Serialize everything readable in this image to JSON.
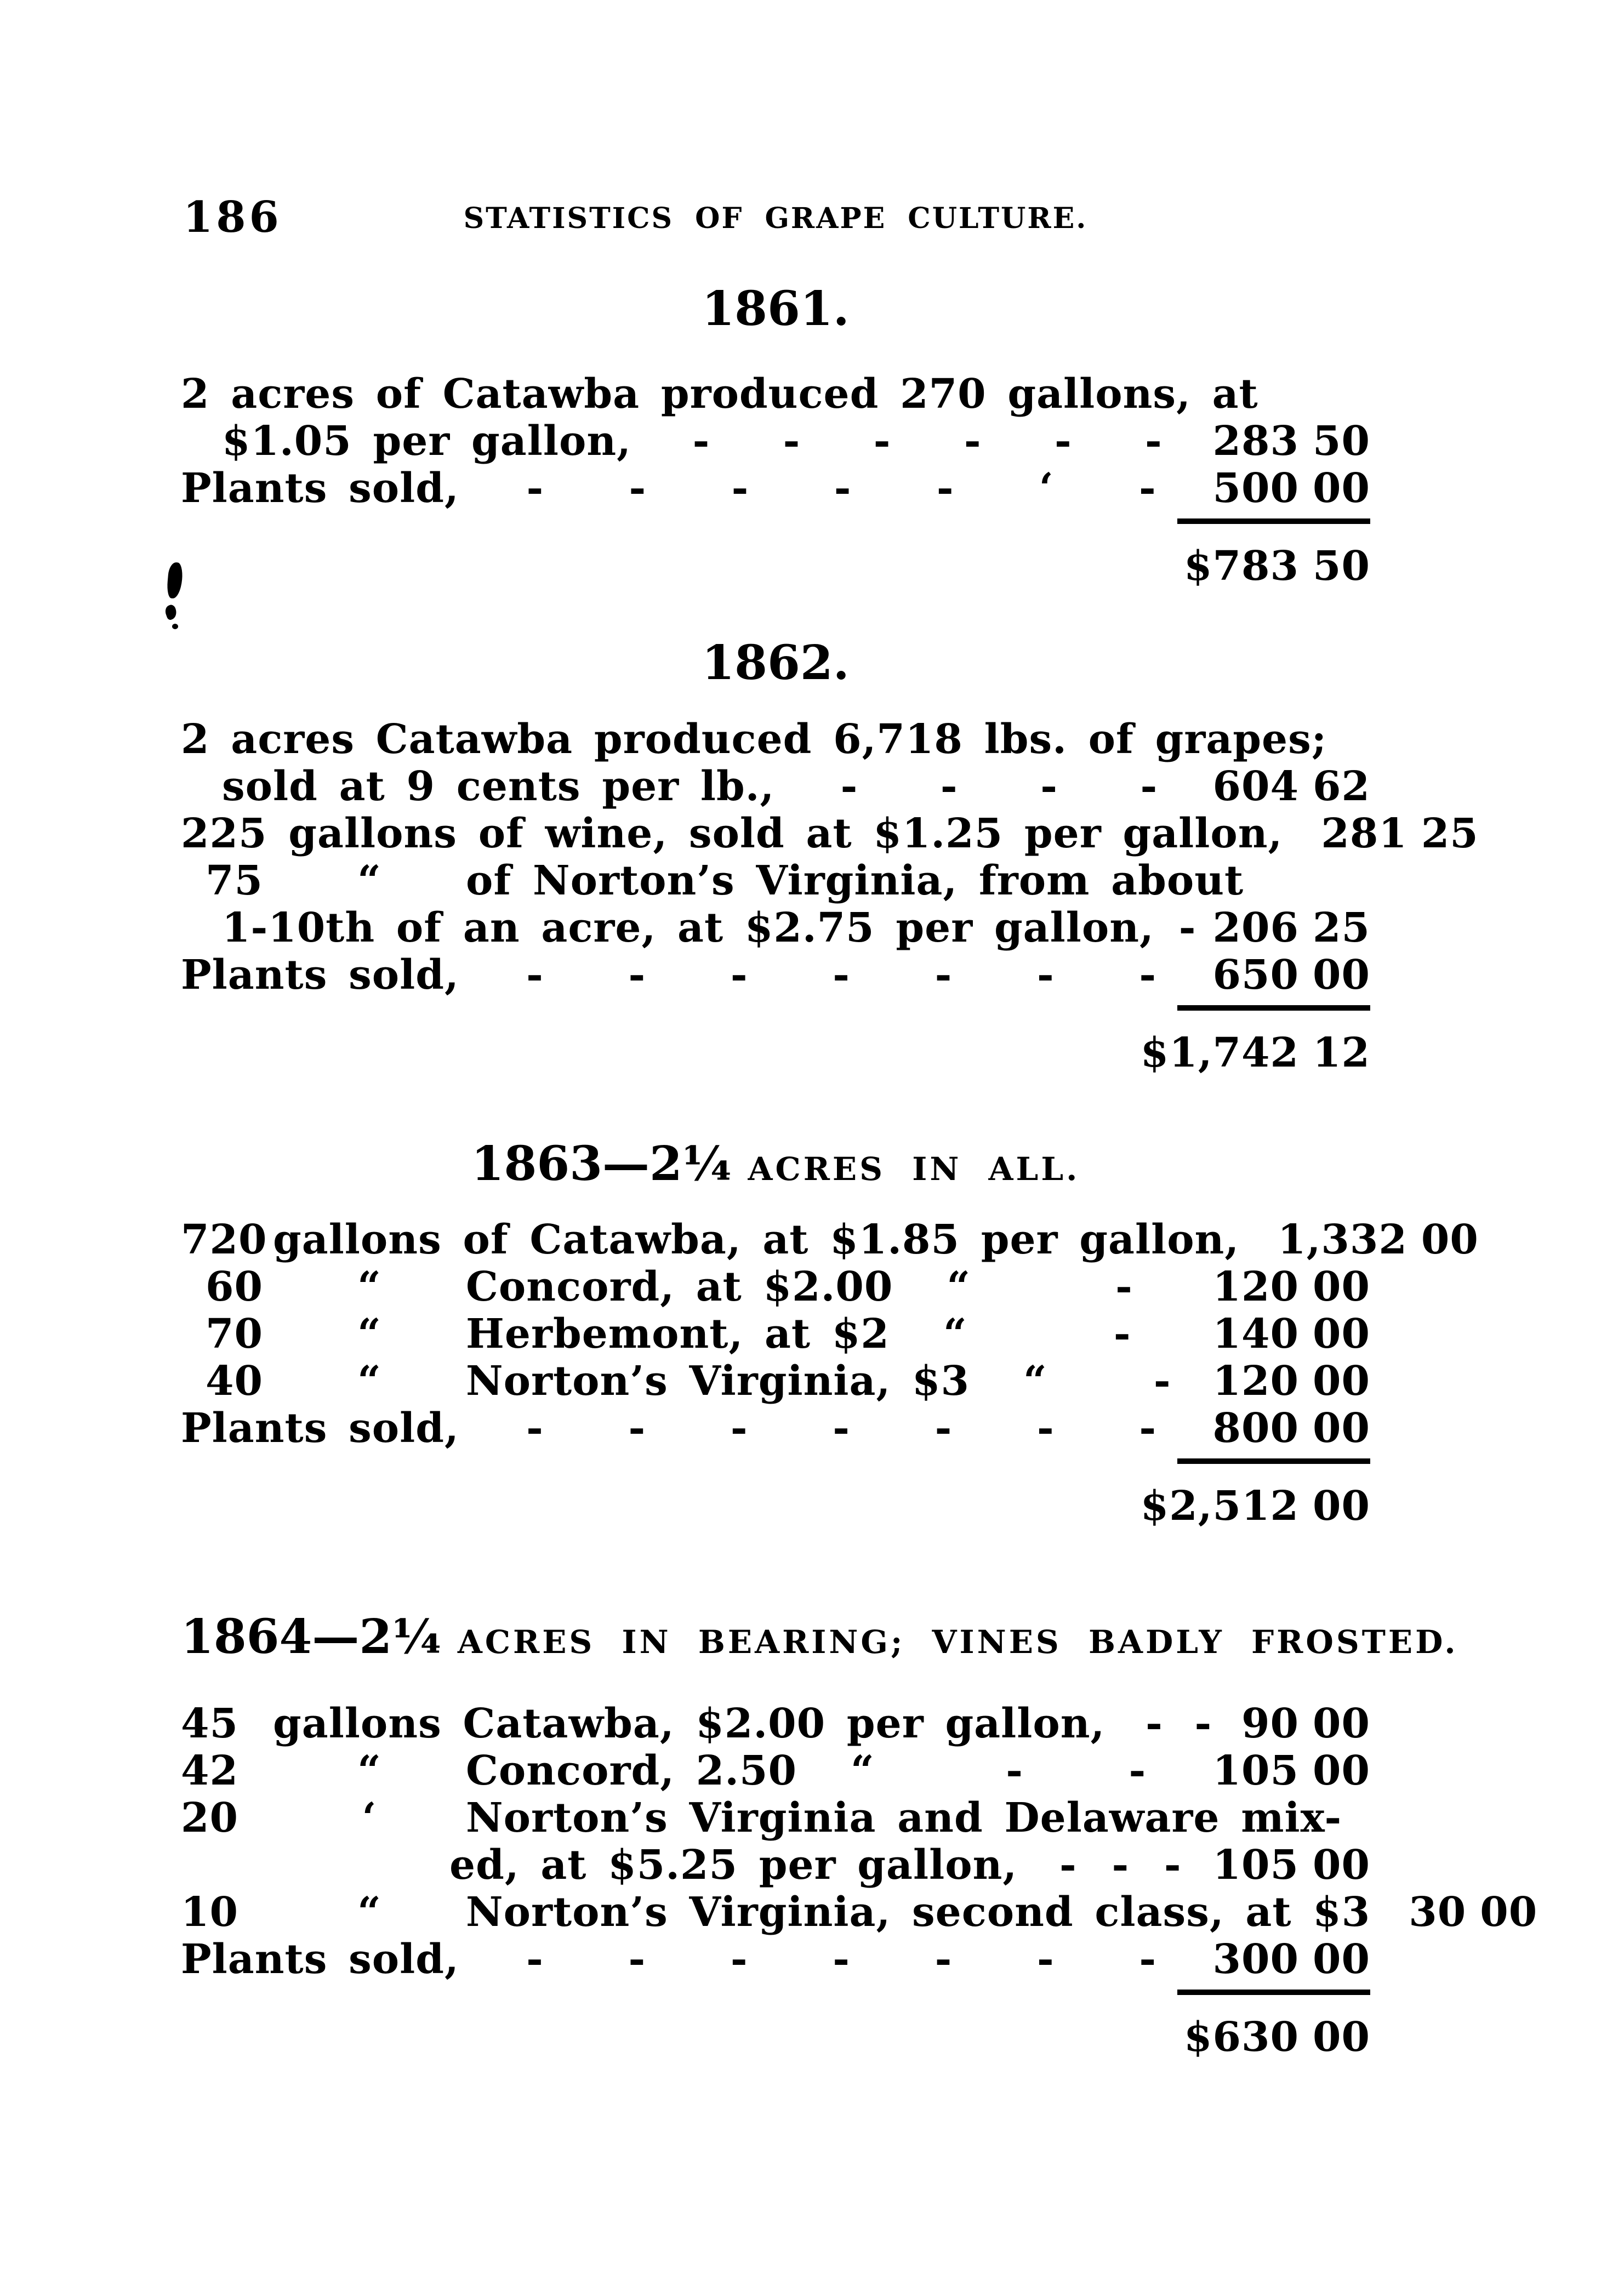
{
  "page": {
    "number": "186",
    "running_title": "STATISTICS OF GRAPE CULTURE."
  },
  "sections": [
    {
      "heading": {
        "main": "1861."
      },
      "lines": [
        {
          "text": "2 acres of Catawba produced 270 gallons, at"
        },
        {
          "text": "$1.05 per gallon,",
          "leader": "- - - - - -",
          "dollars": "283",
          "cents": "50"
        },
        {
          "text": "Plants sold,",
          "leader": "- - - - - ‘ -",
          "dollars": "500",
          "cents": "00"
        }
      ],
      "total": {
        "dollars": "$783",
        "cents": "50"
      }
    },
    {
      "heading": {
        "main": "1862."
      },
      "lines": [
        {
          "text": "2 acres Catawba produced 6,718 lbs. of grapes;"
        },
        {
          "text": "sold at 9 cents per lb.,",
          "leader": "- - - -",
          "dollars": "604",
          "cents": "62"
        },
        {
          "text": "225 gallons of wine, sold at $1.25 per gallon,",
          "leader": "-",
          "dollars": "281",
          "cents": "25"
        },
        {
          "qty": "75",
          "ditto": "“",
          "text": "of Norton’s Virginia, from about"
        },
        {
          "text": "1-10th of an acre, at $2.75 per gallon,",
          "leader": "- ·",
          "dollars": "206",
          "cents": "25"
        },
        {
          "text": "Plants sold,",
          "leader": "- - - - - - -",
          "dollars": "650",
          "cents": "00"
        }
      ],
      "total": {
        "dollars": "$1,742",
        "cents": "12"
      }
    },
    {
      "heading": {
        "main": "1863—2¼",
        "caps": "ACRES IN ALL."
      },
      "lines": [
        {
          "qty": "720",
          "text": "gallons of Catawba, at $1.85 per gallon,",
          "leader": "-",
          "dollars": "1,332",
          "cents": "00"
        },
        {
          "qty": "60",
          "ditto": "“",
          "text": "Concord, at $2.00",
          "ditto2": "“",
          "leader": "-",
          "dollars": "120",
          "cents": "00"
        },
        {
          "qty": "70",
          "ditto": "“",
          "text": "Herbemont, at $2",
          "ditto2": "“",
          "leader": "-",
          "dollars": "140",
          "cents": "00"
        },
        {
          "qty": "40",
          "ditto": "“",
          "text": "Norton’s Virginia, $3",
          "ditto2": "“",
          "leader": "-",
          "dollars": "120",
          "cents": "00"
        },
        {
          "text": "Plants sold,",
          "leader": "- - - - - - -",
          "dollars": "800",
          "cents": "00"
        }
      ],
      "total": {
        "dollars": "$2,512",
        "cents": "00"
      }
    },
    {
      "heading": {
        "main": "1864—2¼",
        "caps": "ACRES IN BEARING; VINES BADLY FROSTED."
      },
      "lines": [
        {
          "qty": "45",
          "text": "gallons Catawba, $2.00 per gallon,",
          "leader": "- -",
          "dollars": "90",
          "cents": "00"
        },
        {
          "qty": "42",
          "ditto": "“",
          "text": "Concord, 2.50",
          "ditto2": "“",
          "leader": "- -",
          "dollars": "105",
          "cents": "00"
        },
        {
          "qty": "20",
          "ditto": "‘",
          "text": "Norton’s Virginia and Delaware mix-"
        },
        {
          "text": "ed, at $5.25 per gallon,",
          "leader": "- - -",
          "dollars": "105",
          "cents": "00"
        },
        {
          "qty": "10",
          "ditto": "“",
          "text": "Norton’s Virginia, second class, at $3",
          "dollars": "30",
          "cents": "00"
        },
        {
          "text": "Plants sold,",
          "leader": "- - - - - - -",
          "dollars": "300",
          "cents": "00"
        }
      ],
      "total": {
        "dollars": "$630",
        "cents": "00"
      }
    }
  ]
}
